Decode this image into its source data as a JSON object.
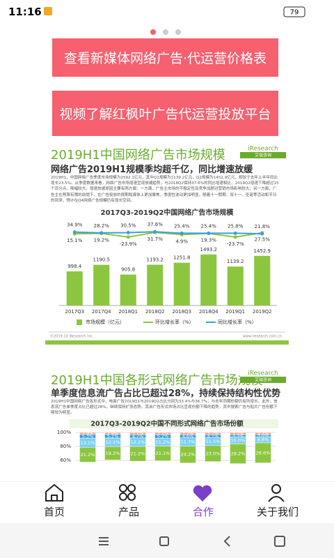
{
  "status_bar": {
    "time": "11:16",
    "battery": "79"
  },
  "buttons": [
    "查看新媒体网络广告·代运营价格表",
    "视频了解红枫叶广告代运营投放平台"
  ],
  "articles": [
    {
      "title": "2019H1中国网络广告市场规模",
      "logo": "iResearch",
      "logo_sub": "艾瑞咨询",
      "subtitle": "网络广告2019H1规模季均超千亿，同比增速放缓",
      "body": "2019H1，中国网络广告季度市场规模为2592.1亿元，其中Q1规模为1139.2亿元，Q2规模为1452.9亿元，相较于去年上半年同比增长23.5%。从季度数据来看，网络广告市场增速呈现放缓趋势，与2018Q2保持37.6%的同比增速相比，2019Q2增速下降超过15个百分点，降幅较大。增速放缓原因主要有两方面：一方面，广告主市场的不稳定性及竞争加剧对营销市场影响较大；另一方面，广告主在预算有限的前提下，在广告投放的周期和媒体上更加聚焦，季度性波动更加明显。随着十一假期、双十一、圣诞等活动和节日的到来，预计在Q4网络广告规模仍有增长空间。",
      "chart": {
        "type": "bar_line",
        "title": "2017Q3-2019Q2中国网络广告市场规模",
        "categories": [
          "2017Q3",
          "2017Q4",
          "2018Q1",
          "2018Q2",
          "2018Q3",
          "2018Q4",
          "2019Q1",
          "2019Q2"
        ],
        "bars": {
          "name": "市场规模（亿元）",
          "color": "#8cc63f",
          "values": [
            998.4,
            1190.5,
            905.8,
            1193.2,
            1251.8,
            1493.2,
            1139.2,
            1452.9
          ]
        },
        "series": [
          {
            "name": "环比增长率（%）",
            "color": "#8cc63f",
            "values": [
              15.1,
              19.2,
              -23.9,
              31.7,
              4.9,
              19.3,
              -23.7,
              27.5
            ],
            "value_labels": [
              "15.1%",
              "19.2%",
              "-23.9%",
              "31.7%",
              "4.9%",
              "19.3%",
              "-23.7%",
              "27.5%"
            ]
          },
          {
            "name": "同比增长率（%）",
            "color": "#3aa0dc",
            "values": [
              34.9,
              28.2,
              30.5,
              37.6,
              25.4,
              25.4,
              25.8,
              21.8
            ],
            "value_labels": [
              "34.9%",
              "28.2%",
              "30.5%",
              "37.6%",
              "25.4%",
              "25.4%",
              "25.8%",
              "21.8%"
            ]
          }
        ]
      },
      "source": "©2019.10 iResearch Inc.",
      "site": "www.iresearch.com.cn"
    },
    {
      "title": "2019H1中国各形式网络广告市场规模",
      "logo": "iResearch",
      "logo_sub": "艾瑞咨询",
      "subtitle": "单季度信息流广告占比已超过28%，持续保持结构性优势",
      "body": "2019H1中国网络广告各形式中，电商广告2019Q1与2019Q2占比分别为33.4%与36.7%，与去年同期份额仍有所增长。此外，信息流广告单季度占比已超过28%，继续保持扩张态势。其余广告形式市场占比呈现份额下降的趋势，其中搜索广告与贴片广告份额下降较为明显。",
      "chart": {
        "type": "stacked_bar",
        "title": "2017Q3-2019Q2中国不同形式网络广告市场份额",
        "ylim": [
          0,
          100
        ],
        "yticks": [
          {
            "value": 100,
            "label": "100%"
          },
          {
            "value": 80,
            "label": "80%"
          },
          {
            "value": 60,
            "label": "60%"
          }
        ],
        "series": [
          {
            "color": "#f4a58a",
            "values": [
              2.9,
              2.9,
              3.2,
              3.1,
              3.2,
              3.2,
              3.2,
              3.2
            ],
            "value_labels": [
              "2.9%",
              "2.9%",
              "3.2%",
              "3.1%",
              "3.2%",
              "3.2%",
              "3.2%",
              "3.2%"
            ]
          },
          {
            "color": "#3a9fe0",
            "values": [
              5.3,
              5.2,
              4.7,
              5.2,
              4.6,
              4.1,
              3.3,
              3.0
            ],
            "value_labels": [
              "5.3%",
              "5.2%",
              "4.7%",
              "5.2%",
              "4.6%",
              "4.1%",
              "3.3%",
              "3.0%"
            ]
          },
          {
            "color": "#7fd0f0",
            "values": [
              13.1,
              12.1,
              12.1,
              11.2,
              11.7,
              11.5,
              10.0,
              8.8
            ],
            "value_labels": [
              "13.1%",
              "12.1%",
              "12.1%",
              "11.2%",
              "11.7%",
              "11.5%",
              "10.0%",
              "8.8%"
            ]
          },
          {
            "color": "#8cc63f",
            "values": [
              21.2,
              19.2,
              21.2,
              21.1,
              24.2,
              23.0,
              28.2,
              28.6
            ],
            "value_labels": [
              "21.2%",
              "19.2%",
              "21.2%",
              "21.1%",
              "24.2%",
              "23.0%",
              "28.2%",
              "28.6%"
            ]
          }
        ]
      }
    }
  ],
  "nav": {
    "items": [
      "首页",
      "产品",
      "合作",
      "关于我们"
    ],
    "active": 2
  }
}
